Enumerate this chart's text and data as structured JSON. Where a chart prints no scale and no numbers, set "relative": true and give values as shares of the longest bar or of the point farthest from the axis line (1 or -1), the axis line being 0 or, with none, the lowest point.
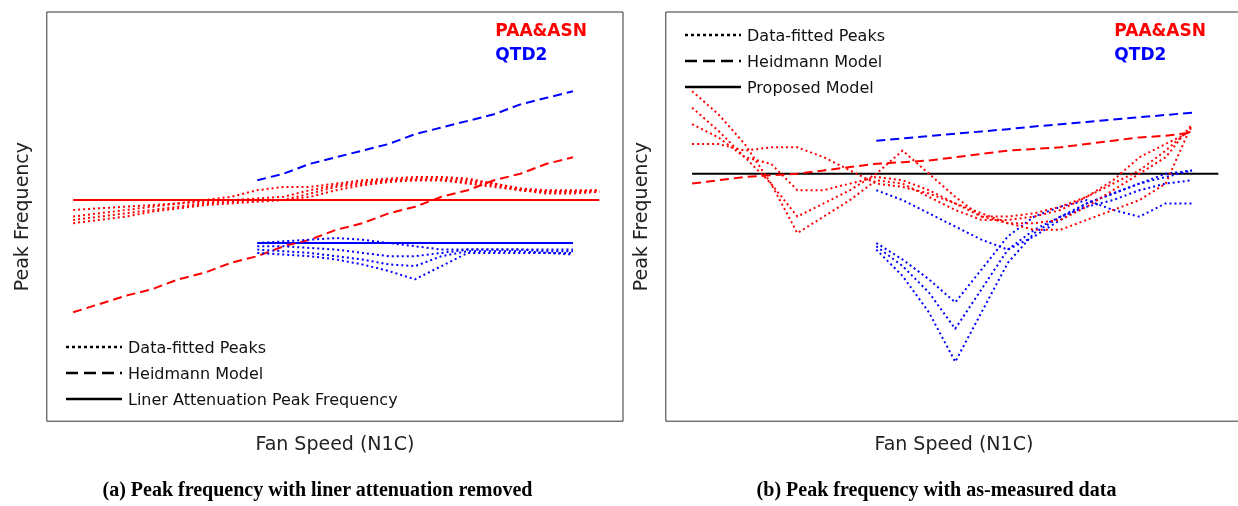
{
  "chart_data": [
    {
      "type": "line",
      "title": "(a) Peak frequency with liner attenuation removed",
      "xlabel": "Fan Speed (N1C)",
      "ylabel": "Peak Frequency",
      "relative": true,
      "tick_labels": false,
      "annotations": [
        "PAA&ASN",
        "QTD2",
        "Data-fitted Peaks",
        "Heidmann Model",
        "Liner Attenuation Peak Frequency"
      ],
      "categories": [
        null,
        null,
        null,
        null,
        null,
        null,
        null,
        null,
        null,
        null,
        null,
        null,
        null,
        null,
        null,
        null,
        null,
        null,
        null,
        null,
        null
      ],
      "series": [
        {
          "color": "#ff0000",
          "line_style": "dotted",
          "values": [
            0.64,
            0.645,
            0.65,
            0.655,
            0.66,
            0.67,
            0.68,
            0.7,
            0.71,
            0.71,
            0.72,
            0.73,
            0.735,
            0.74,
            0.74,
            0.735,
            0.72,
            0.705,
            0.7,
            0.7,
            0.7
          ]
        },
        {
          "color": "#ff0000",
          "line_style": "dotted",
          "values": [
            0.62,
            0.63,
            0.64,
            0.65,
            0.66,
            0.665,
            0.67,
            0.675,
            0.68,
            0.7,
            0.715,
            0.725,
            0.73,
            0.735,
            0.735,
            0.73,
            0.72,
            0.705,
            0.695,
            0.695,
            0.7
          ]
        },
        {
          "color": "#ff0000",
          "line_style": "dotted",
          "values": [
            0.61,
            0.62,
            0.63,
            0.64,
            0.65,
            0.66,
            0.665,
            0.67,
            0.67,
            0.69,
            0.71,
            0.72,
            0.73,
            0.73,
            0.73,
            0.725,
            0.715,
            0.7,
            0.695,
            0.695,
            0.695
          ]
        },
        {
          "color": "#ff0000",
          "line_style": "dotted",
          "values": [
            0.6,
            0.61,
            0.62,
            0.635,
            0.645,
            0.655,
            0.66,
            0.665,
            0.67,
            0.68,
            0.7,
            0.715,
            0.725,
            0.73,
            0.73,
            0.72,
            0.71,
            0.7,
            0.69,
            0.69,
            0.695
          ]
        },
        {
          "color": "#0000ff",
          "line_style": "dotted",
          "values": [
            null,
            null,
            null,
            null,
            null,
            null,
            null,
            0.54,
            0.545,
            0.55,
            0.555,
            0.55,
            0.54,
            0.53,
            0.52,
            0.52,
            0.52,
            0.52,
            0.52,
            0.52,
            null
          ]
        },
        {
          "color": "#0000ff",
          "line_style": "dotted",
          "values": [
            null,
            null,
            null,
            null,
            null,
            null,
            null,
            0.53,
            0.53,
            0.525,
            0.52,
            0.51,
            0.5,
            0.5,
            0.51,
            0.52,
            0.52,
            0.52,
            0.515,
            0.515,
            null
          ]
        },
        {
          "color": "#0000ff",
          "line_style": "dotted",
          "values": [
            null,
            null,
            null,
            null,
            null,
            null,
            null,
            0.52,
            0.515,
            0.51,
            0.5,
            0.49,
            0.475,
            0.47,
            0.5,
            0.515,
            0.515,
            0.515,
            0.51,
            0.51,
            null
          ]
        },
        {
          "color": "#0000ff",
          "line_style": "dotted",
          "values": [
            null,
            null,
            null,
            null,
            null,
            null,
            null,
            0.51,
            0.505,
            0.5,
            0.49,
            0.475,
            0.455,
            0.43,
            0.47,
            0.51,
            0.51,
            0.51,
            0.51,
            0.505,
            null
          ]
        },
        {
          "color": "#ff0000",
          "line_style": "dashed",
          "values": [
            0.33,
            0.355,
            0.38,
            0.4,
            0.43,
            0.45,
            0.48,
            0.5,
            0.53,
            0.55,
            0.58,
            0.6,
            0.63,
            0.65,
            0.68,
            0.7,
            0.73,
            0.75,
            0.78,
            0.8,
            null
          ]
        },
        {
          "color": "#0000ff",
          "line_style": "dashed",
          "values": [
            null,
            null,
            null,
            null,
            null,
            null,
            null,
            0.73,
            0.75,
            0.78,
            0.8,
            0.82,
            0.84,
            0.87,
            0.89,
            0.91,
            0.93,
            0.96,
            0.98,
            1.0,
            null
          ]
        },
        {
          "color": "#ff0000",
          "line_style": "solid",
          "values": [
            0.67,
            0.67,
            0.67,
            0.67,
            0.67,
            0.67,
            0.67,
            0.67,
            0.67,
            0.67,
            0.67,
            0.67,
            0.67,
            0.67,
            0.67,
            0.67,
            0.67,
            0.67,
            0.67,
            0.67,
            0.67
          ]
        },
        {
          "color": "#0000ff",
          "line_style": "solid",
          "values": [
            null,
            null,
            null,
            null,
            null,
            null,
            null,
            0.54,
            0.54,
            0.54,
            0.54,
            0.54,
            0.54,
            0.54,
            0.54,
            0.54,
            0.54,
            0.54,
            0.54,
            0.54,
            null
          ]
        }
      ]
    },
    {
      "type": "line",
      "title": "(b) Peak frequency with as-measured data",
      "xlabel": "Fan Speed (N1C)",
      "ylabel": "Peak Frequency",
      "relative": true,
      "tick_labels": false,
      "annotations": [
        "PAA&ASN",
        "QTD2",
        "Data-fitted Peaks",
        "Heidmann Model",
        "Proposed Model"
      ],
      "categories": [
        null,
        null,
        null,
        null,
        null,
        null,
        null,
        null,
        null,
        null,
        null,
        null,
        null,
        null,
        null,
        null,
        null,
        null,
        null,
        null,
        null
      ],
      "series": [
        {
          "color": "#ff0000",
          "line_style": "dotted",
          "values": [
            1.0,
            0.93,
            0.84,
            0.72,
            0.57,
            0.62,
            0.67,
            0.73,
            0.72,
            0.68,
            0.64,
            0.61,
            0.61,
            0.62,
            0.64,
            0.68,
            0.72,
            0.76,
            0.82,
            0.89,
            null
          ]
        },
        {
          "color": "#ff0000",
          "line_style": "dotted",
          "values": [
            0.95,
            0.88,
            0.8,
            0.72,
            0.62,
            0.66,
            0.7,
            0.75,
            0.82,
            0.75,
            0.68,
            0.62,
            0.6,
            0.6,
            0.61,
            0.65,
            0.7,
            0.75,
            0.8,
            0.9,
            null
          ]
        },
        {
          "color": "#ff0000",
          "line_style": "dotted",
          "values": [
            0.9,
            0.86,
            0.8,
            0.78,
            0.7,
            0.7,
            0.72,
            0.74,
            0.73,
            0.7,
            0.66,
            0.62,
            0.62,
            0.63,
            0.65,
            0.68,
            0.73,
            0.8,
            0.84,
            0.88,
            null
          ]
        },
        {
          "color": "#ff0000",
          "line_style": "dotted",
          "values": [
            0.84,
            0.84,
            0.82,
            0.83,
            0.83,
            0.8,
            0.76,
            0.72,
            0.71,
            0.69,
            0.66,
            0.63,
            0.6,
            0.58,
            0.58,
            0.61,
            0.64,
            0.67,
            0.72,
            0.9,
            null
          ]
        },
        {
          "color": "#0000ff",
          "line_style": "dotted",
          "values": [
            null,
            null,
            null,
            null,
            null,
            null,
            null,
            0.7,
            0.67,
            0.63,
            0.59,
            0.55,
            0.52,
            0.56,
            0.61,
            0.66,
            0.69,
            0.72,
            0.75,
            0.76,
            null
          ]
        },
        {
          "color": "#0000ff",
          "line_style": "dotted",
          "values": [
            null,
            null,
            null,
            null,
            null,
            null,
            null,
            0.54,
            0.49,
            0.43,
            0.36,
            0.46,
            0.56,
            0.62,
            0.65,
            0.67,
            0.64,
            0.62,
            0.66,
            0.66,
            null
          ]
        },
        {
          "color": "#0000ff",
          "line_style": "dotted",
          "values": [
            null,
            null,
            null,
            null,
            null,
            null,
            null,
            0.53,
            0.47,
            0.39,
            0.28,
            0.4,
            0.52,
            0.58,
            0.62,
            0.65,
            0.67,
            0.7,
            0.72,
            0.73,
            null
          ]
        },
        {
          "color": "#0000ff",
          "line_style": "dotted",
          "values": [
            null,
            null,
            null,
            null,
            null,
            null,
            null,
            0.52,
            0.44,
            0.33,
            0.18,
            0.33,
            0.48,
            0.57,
            0.62,
            0.66,
            0.69,
            0.72,
            0.74,
            0.76,
            null
          ]
        },
        {
          "color": "#ff0000",
          "line_style": "dashed",
          "values": [
            0.72,
            0.73,
            0.74,
            0.745,
            0.75,
            0.76,
            0.77,
            0.78,
            0.785,
            0.79,
            0.8,
            0.81,
            0.82,
            0.825,
            0.83,
            0.84,
            0.85,
            0.86,
            0.865,
            0.875,
            null
          ]
        },
        {
          "color": "#0000ff",
          "line_style": "dashed",
          "values": [
            null,
            null,
            null,
            null,
            null,
            null,
            null,
            0.85,
            0.857,
            0.864,
            0.871,
            0.878,
            0.885,
            0.893,
            0.9,
            0.907,
            0.914,
            0.921,
            0.928,
            0.935,
            null
          ]
        },
        {
          "color": "#000000",
          "line_style": "solid",
          "values": [
            0.75,
            0.75,
            0.75,
            0.75,
            0.75,
            0.75,
            0.75,
            0.75,
            0.75,
            0.75,
            0.75,
            0.75,
            0.75,
            0.75,
            0.75,
            0.75,
            0.75,
            0.75,
            0.75,
            0.75,
            0.75
          ]
        }
      ]
    }
  ]
}
